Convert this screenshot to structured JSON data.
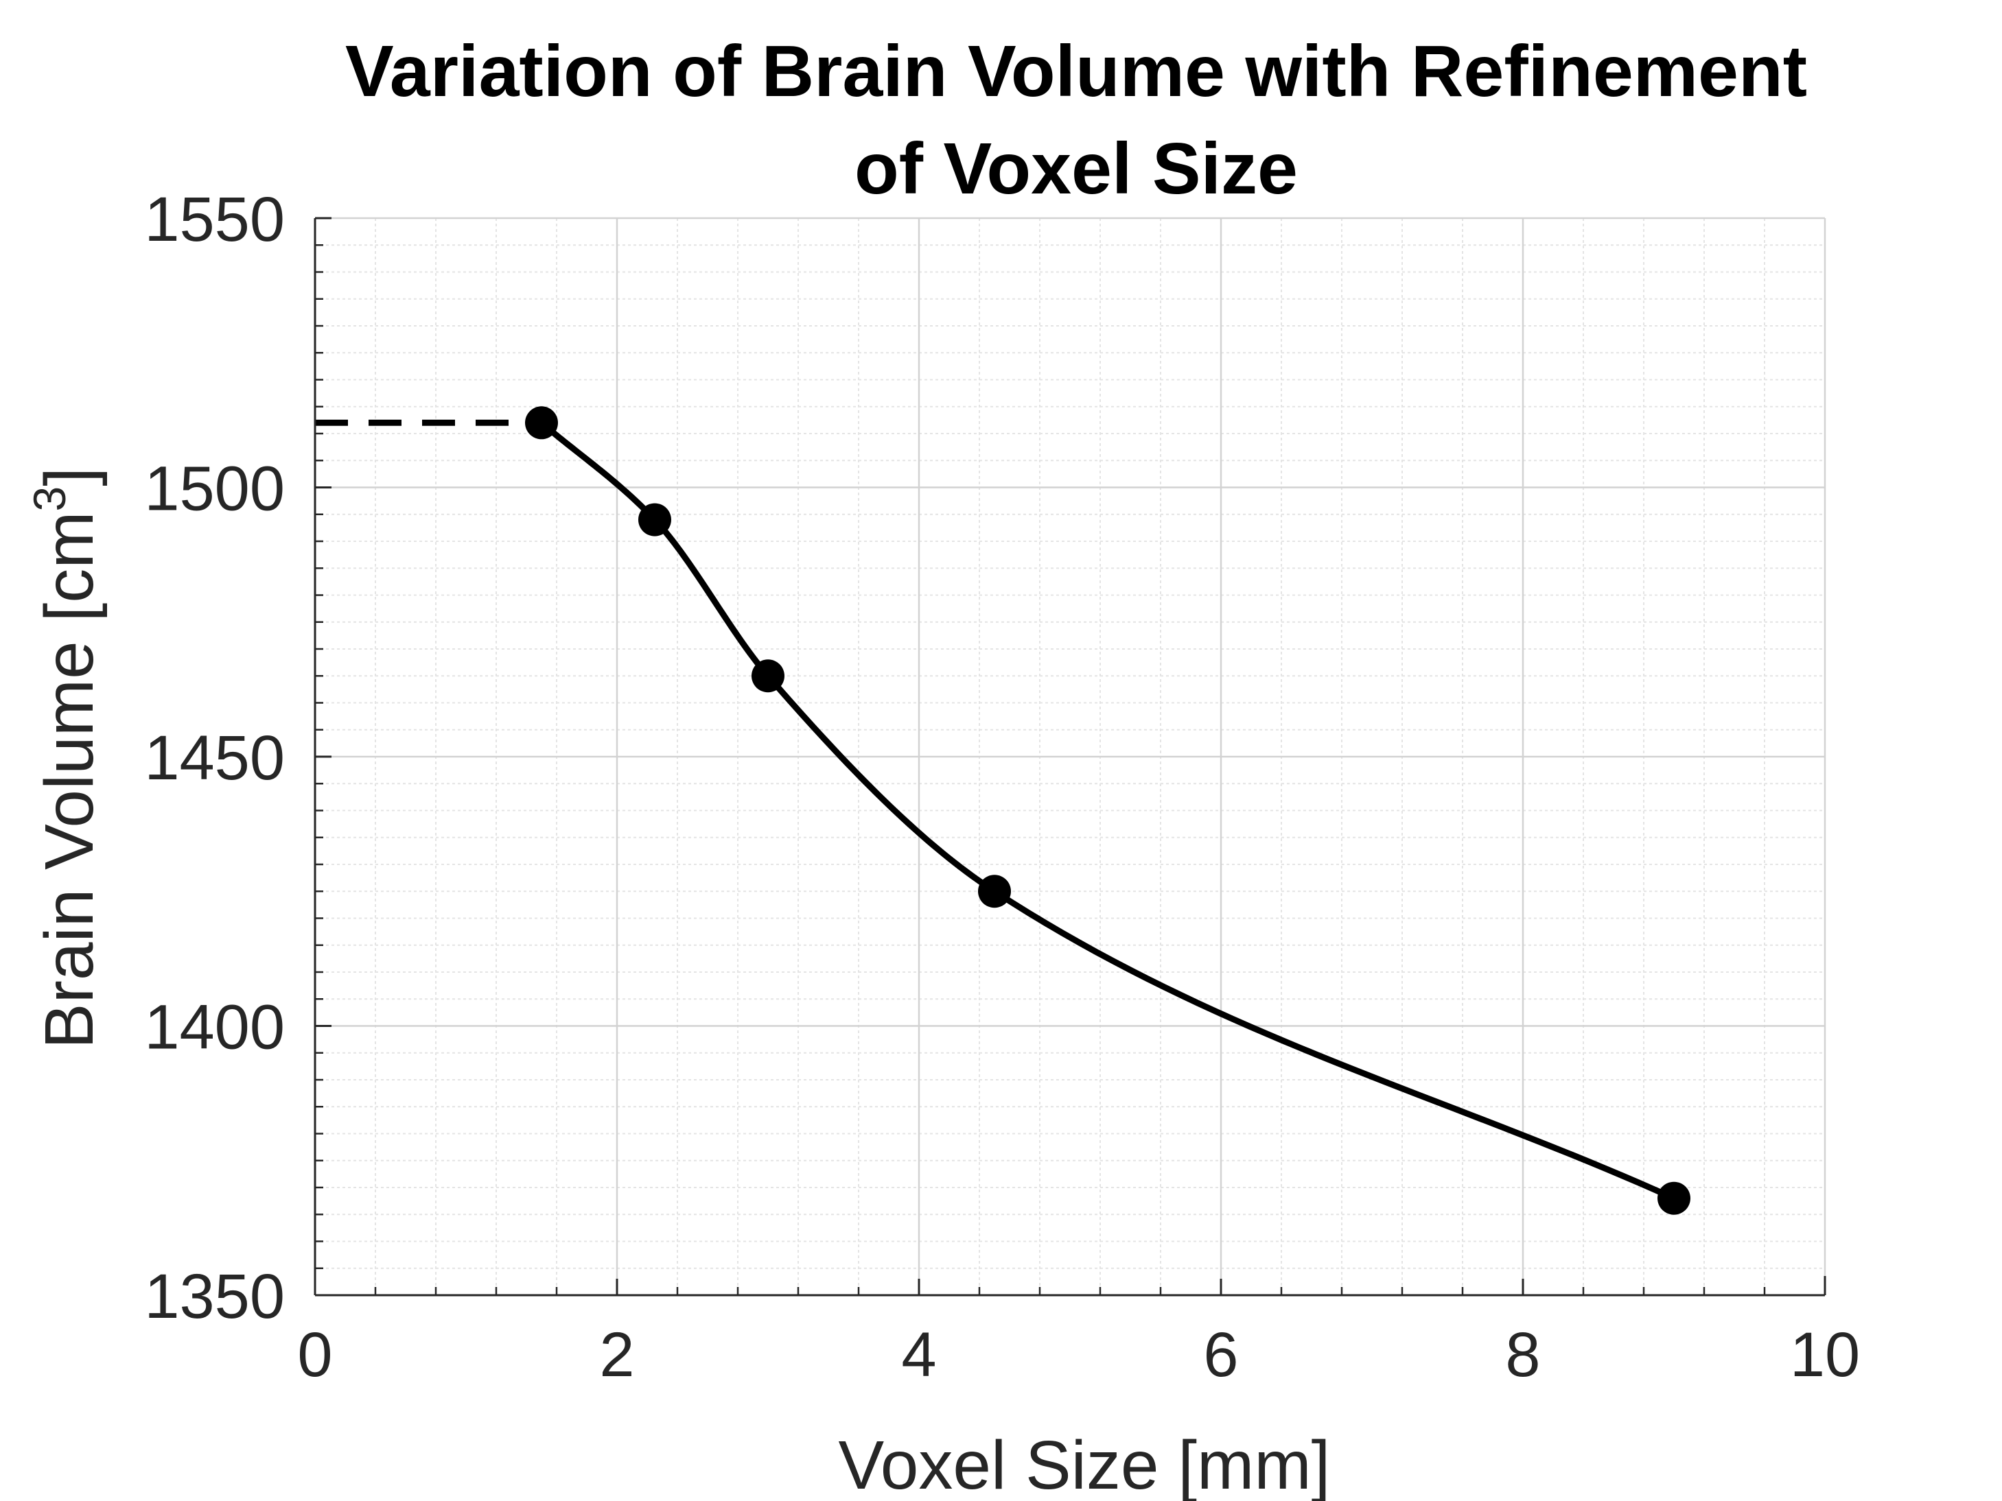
{
  "chart_data": {
    "type": "line",
    "title": [
      "Variation of Brain Volume with Refinement",
      "of Voxel Size"
    ],
    "xlabel": "Voxel Size [mm]",
    "ylabel": {
      "main": "Brain Volume [cm",
      "sup": "3",
      "tail": "]"
    },
    "xlim": [
      0,
      10
    ],
    "ylim": [
      1350,
      1550
    ],
    "xticks": [
      0,
      2,
      4,
      6,
      8,
      10
    ],
    "yticks": [
      1350,
      1400,
      1450,
      1500,
      1550
    ],
    "xtick_labels": [
      "0",
      "2",
      "4",
      "6",
      "8",
      "10"
    ],
    "ytick_labels": [
      "1350",
      "1400",
      "1450",
      "1500",
      "1550"
    ],
    "grid": true,
    "minor_grid": true,
    "series": [
      {
        "x": [
          1.5,
          2.25,
          3,
          4.5,
          9
        ],
        "y": [
          1512,
          1494,
          1465,
          1425,
          1368
        ],
        "style": "solid",
        "marker": "circle",
        "color": "#000000"
      }
    ],
    "extrapolation": {
      "x": [
        0,
        1.5
      ],
      "y": [
        1512,
        1512
      ],
      "style": "dashed",
      "color": "#000000"
    }
  }
}
